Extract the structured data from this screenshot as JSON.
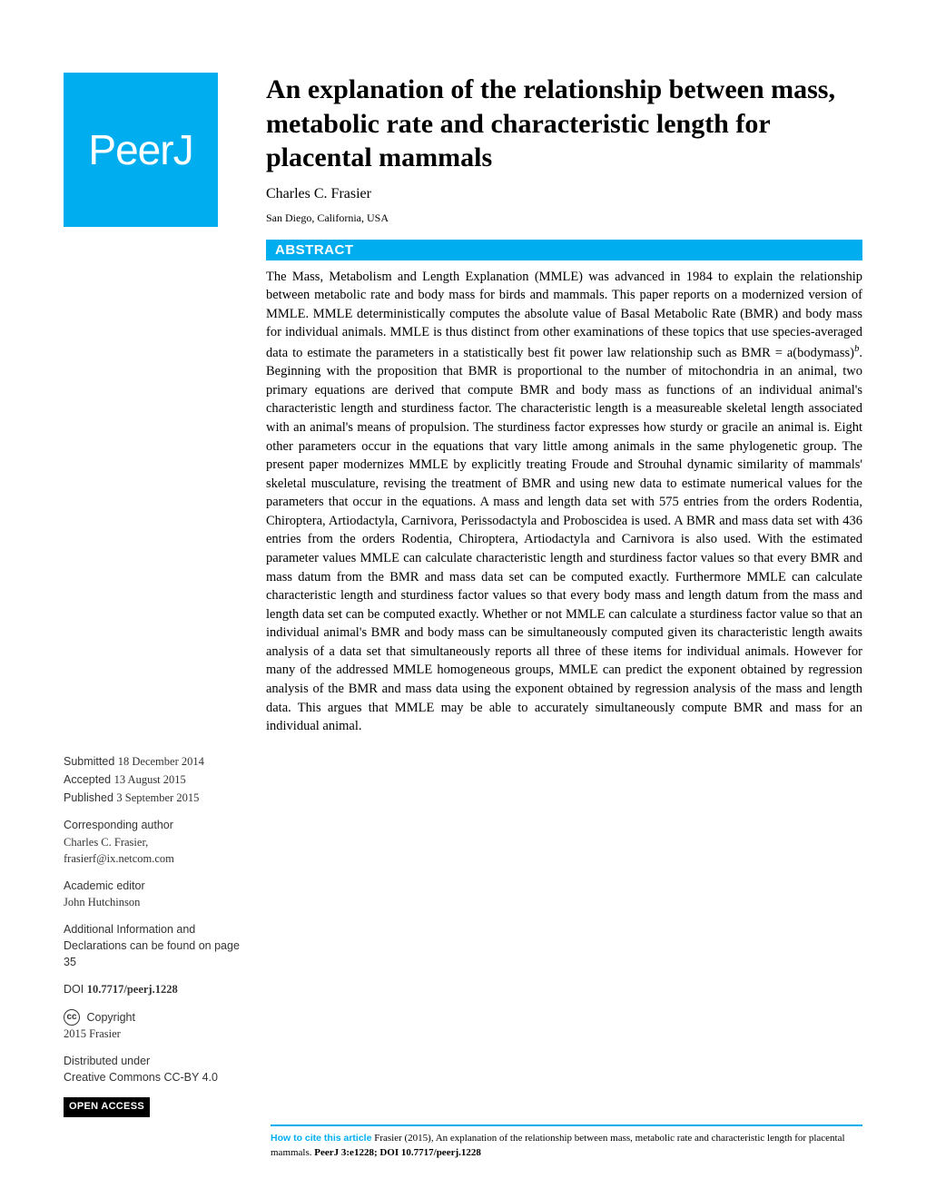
{
  "logo": {
    "text": "PeerJ",
    "bg_color": "#00aeef",
    "text_color": "#ffffff"
  },
  "article": {
    "title": "An explanation of the relationship between mass, metabolic rate and characteristic length for placental mammals",
    "author": "Charles C. Frasier",
    "affiliation": "San Diego, California, USA",
    "abstract_label": "ABSTRACT",
    "abstract_pre": "The Mass, Metabolism and Length Explanation (MMLE) was advanced in 1984 to explain the relationship between metabolic rate and body mass for birds and mammals. This paper reports on a modernized version of MMLE. MMLE deterministically computes the absolute value of Basal Metabolic Rate (BMR) and body mass for individual animals. MMLE is thus distinct from other examinations of these topics that use species-averaged data to estimate the parameters in a statistically best fit power law relationship such as BMR = a(bodymass)",
    "abstract_exp": "b",
    "abstract_post": ". Beginning with the proposition that BMR is proportional to the number of mitochondria in an animal, two primary equations are derived that compute BMR and body mass as functions of an individual animal's characteristic length and sturdiness factor. The characteristic length is a measureable skeletal length associated with an animal's means of propulsion. The sturdiness factor expresses how sturdy or gracile an animal is. Eight other parameters occur in the equations that vary little among animals in the same phylogenetic group. The present paper modernizes MMLE by explicitly treating Froude and Strouhal dynamic similarity of mammals' skeletal musculature, revising the treatment of BMR and using new data to estimate numerical values for the parameters that occur in the equations. A mass and length data set with 575 entries from the orders Rodentia, Chiroptera, Artiodactyla, Carnivora, Perissodactyla and Proboscidea is used. A BMR and mass data set with 436 entries from the orders Rodentia, Chiroptera, Artiodactyla and Carnivora is also used. With the estimated parameter values MMLE can calculate characteristic length and sturdiness factor values so that every BMR and mass datum from the BMR and mass data set can be computed exactly. Furthermore MMLE can calculate characteristic length and sturdiness factor values so that every body mass and length datum from the mass and length data set can be computed exactly. Whether or not MMLE can calculate a sturdiness factor value so that an individual animal's BMR and body mass can be simultaneously computed given its characteristic length awaits analysis of a data set that simultaneously reports all three of these items for individual animals. However for many of the addressed MMLE homogeneous groups, MMLE can predict the exponent obtained by regression analysis of the BMR and mass data using the exponent obtained by regression analysis of the mass and length data. This argues that MMLE may be able to accurately simultaneously compute BMR and mass for an individual animal."
  },
  "meta": {
    "submitted_label": "Submitted",
    "submitted_date": "18 December 2014",
    "accepted_label": "Accepted",
    "accepted_date": "13 August 2015",
    "published_label": "Published",
    "published_date": "3 September 2015",
    "corresponding_label": "Corresponding author",
    "corresponding_name": "Charles C. Frasier,",
    "corresponding_email": "frasierf@ix.netcom.com",
    "editor_label": "Academic editor",
    "editor_name": "John Hutchinson",
    "additional_info": "Additional Information and Declarations can be found on page 35",
    "doi_label": "DOI",
    "doi_value": "10.7717/peerj.1228",
    "copyright_label": "Copyright",
    "copyright_value": "2015 Frasier",
    "distributed_label": "Distributed under",
    "distributed_value": "Creative Commons CC-BY 4.0",
    "open_access": "OPEN ACCESS"
  },
  "citation": {
    "label": "How to cite this article",
    "text_pre": " Frasier (2015), An explanation of the relationship between mass, metabolic rate and characteristic length for placental mammals. ",
    "journal": "PeerJ 3:e1228; DOI 10.7717/peerj.1228"
  },
  "colors": {
    "accent": "#00aeef",
    "text": "#000000",
    "background": "#ffffff"
  },
  "typography": {
    "title_fontsize": 30,
    "body_fontsize": 14.5,
    "meta_fontsize": 12.5,
    "citation_fontsize": 11
  }
}
